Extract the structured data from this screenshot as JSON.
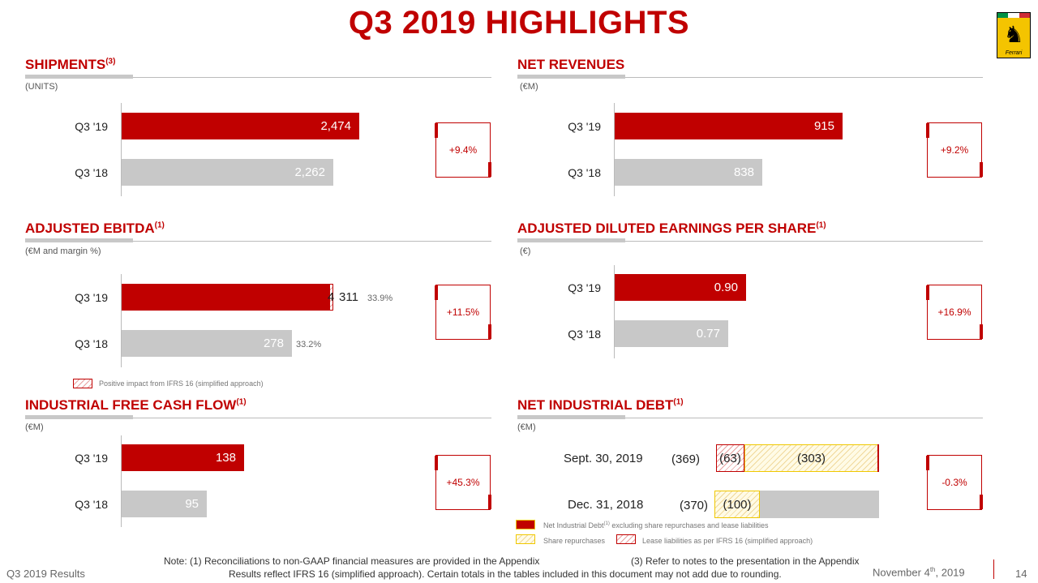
{
  "title": "Q3 2019 HIGHLIGHTS",
  "logo": {
    "brand": "Ferrari",
    "icon": "prancing-horse-icon"
  },
  "colors": {
    "red": "#c00000",
    "grey": "#c8c8c8",
    "yellow": "#f4c400"
  },
  "shipments": {
    "title": "SHIPMENTS",
    "note": "(3)",
    "unit": "(UNITS)",
    "rows": [
      {
        "label": "Q3 '19",
        "value": "2,474"
      },
      {
        "label": "Q3 '18",
        "value": "2,262"
      }
    ],
    "delta": "+9.4%"
  },
  "revenues": {
    "title": "NET REVENUES",
    "unit": "(€M)",
    "rows": [
      {
        "label": "Q3 '19",
        "value": "915"
      },
      {
        "label": "Q3 '18",
        "value": "838"
      }
    ],
    "delta": "+9.2%"
  },
  "ebitda": {
    "title": "ADJUSTED EBITDA",
    "note": "(1)",
    "unit": "(€M and margin %)",
    "rows": [
      {
        "label": "Q3 '19",
        "value": "311",
        "ifrs": "4",
        "margin": "33.9%"
      },
      {
        "label": "Q3 '18",
        "value": "278",
        "margin": "33.2%"
      }
    ],
    "delta": "+11.5%",
    "legend": "Positive impact from IFRS 16 (simplified approach)"
  },
  "eps": {
    "title": "ADJUSTED DILUTED EARNINGS PER SHARE",
    "note": "(1)",
    "unit": "(€)",
    "rows": [
      {
        "label": "Q3 '19",
        "value": "0.90"
      },
      {
        "label": "Q3 '18",
        "value": "0.77"
      }
    ],
    "delta": "+16.9%"
  },
  "fcf": {
    "title": "INDUSTRIAL FREE CASH FLOW",
    "note": "(1)",
    "unit": "(€M)",
    "rows": [
      {
        "label": "Q3 '19",
        "value": "138"
      },
      {
        "label": "Q3 '18",
        "value": "95"
      }
    ],
    "delta": "+45.3%"
  },
  "debt": {
    "title": "NET INDUSTRIAL DEBT",
    "note": "(1)",
    "unit": "(€M)",
    "rows": [
      {
        "label": "Sept. 30, 2019",
        "total": "(369)",
        "lease": "(63)",
        "repurchase": "(303)"
      },
      {
        "label": "Dec. 31, 2018",
        "total": "(370)",
        "repurchase": "(100)"
      }
    ],
    "delta": "-0.3%",
    "legend_net_prefix": "Net Industrial Debt",
    "legend_net_note": "(1)",
    "legend_net_suffix": " excluding share repurchases and lease liabilities",
    "legend_repurchase": "Share repurchases",
    "legend_lease": "Lease liabilities as per IFRS 16 (simplified approach)"
  },
  "footer": {
    "left": "Q3 2019 Results",
    "note1": "Note: (1) Reconciliations to non-GAAP financial measures are provided in the Appendix",
    "note3": "(3) Refer to notes to the presentation in the Appendix",
    "note2": "Results reflect IFRS 16 (simplified approach). Certain totals in the tables included in this document may not add due to rounding.",
    "date_prefix": "November 4",
    "date_sup": "th",
    "date_suffix": ", 2019",
    "page": "14"
  }
}
